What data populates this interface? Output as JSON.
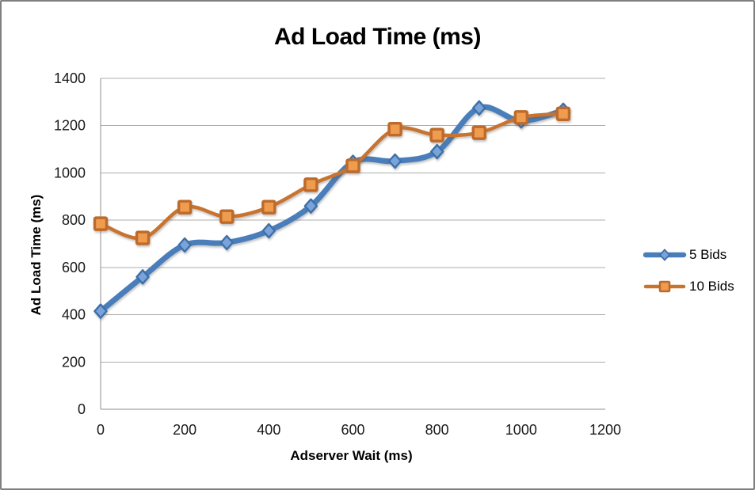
{
  "frame": {
    "background": "#FFFFFF",
    "border_color": "#7F7F7F"
  },
  "chart_data": {
    "type": "line",
    "title": "Ad Load Time (ms)",
    "xlabel": "Adserver Wait (ms)",
    "ylabel": "Ad Load Time (ms)",
    "x": [
      0,
      100,
      200,
      300,
      400,
      500,
      600,
      700,
      800,
      900,
      1000,
      1100
    ],
    "series": [
      {
        "name": "5 Bids",
        "marker": "diamond",
        "line_color": "#4A7EBB",
        "marker_fill": "#79A3DA",
        "marker_stroke": "#3E6FA8",
        "line_width": 7,
        "values": [
          415,
          560,
          695,
          705,
          755,
          860,
          1045,
          1050,
          1090,
          1275,
          1220,
          1265
        ]
      },
      {
        "name": "10 Bids",
        "marker": "square",
        "line_color": "#C8732E",
        "marker_fill": "#F09C50",
        "marker_stroke": "#BD6A2B",
        "line_width": 4.5,
        "values": [
          785,
          725,
          855,
          815,
          855,
          950,
          1030,
          1185,
          1160,
          1170,
          1235,
          1250
        ]
      }
    ],
    "xlim": [
      0,
      1200
    ],
    "ylim": [
      0,
      1400
    ],
    "xticks": [
      0,
      200,
      400,
      600,
      800,
      1000,
      1200
    ],
    "yticks": [
      0,
      200,
      400,
      600,
      800,
      1000,
      1200,
      1400
    ],
    "grid": "horizontal-only",
    "smooth_lines": true,
    "legend_position": "right-middle",
    "gridline_color": "#ACACAC",
    "axis_color": "#8C8C8C",
    "tick_text_color": "#1A1A1A"
  }
}
